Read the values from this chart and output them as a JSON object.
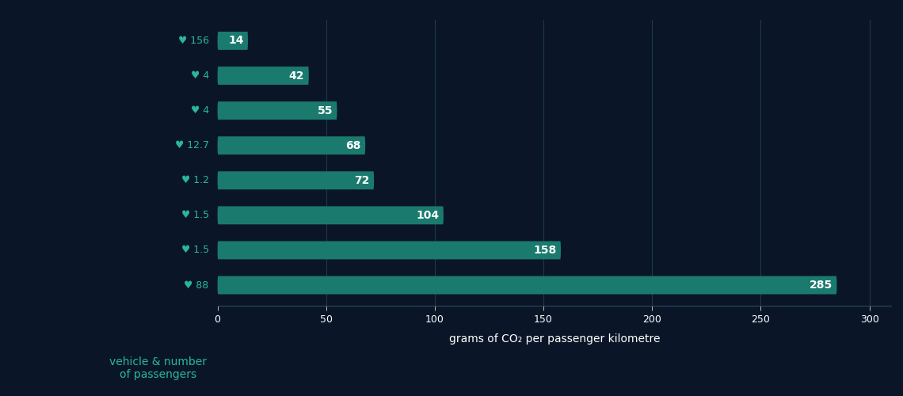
{
  "values": [
    14,
    42,
    55,
    68,
    72,
    104,
    158,
    285
  ],
  "passengers": [
    "156",
    "4",
    "4",
    "12.7",
    "1.2",
    "1.5",
    "1.5",
    "88"
  ],
  "bar_color": "#1a7a6e",
  "background_color": "#0a1628",
  "text_color": "#ffffff",
  "passenger_color": "#2ab5a0",
  "xlabel": "grams of CO₂ per passenger kilometre",
  "ylabel": "vehicle & number\nof passengers",
  "xlim": [
    0,
    310
  ],
  "xticks": [
    0,
    50,
    100,
    150,
    200,
    250,
    300
  ],
  "bar_height": 0.52,
  "xlabel_fontsize": 10,
  "ylabel_fontsize": 10,
  "tick_fontsize": 9,
  "value_fontsize": 10,
  "passenger_fontsize": 9
}
